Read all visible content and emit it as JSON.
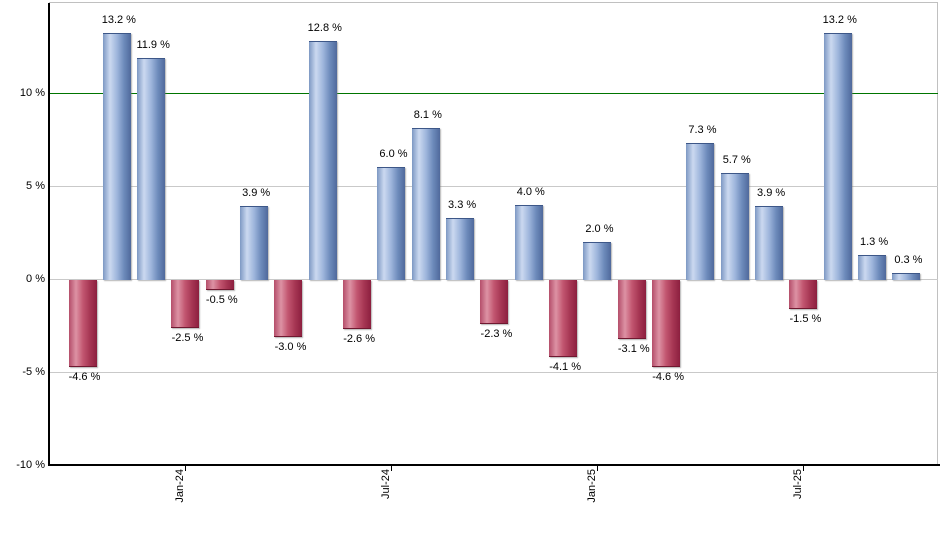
{
  "chart_data": {
    "type": "bar",
    "title": "",
    "xlabel": "",
    "ylabel": "",
    "grid": true,
    "legend": false,
    "ylim": [
      -10,
      14.8
    ],
    "values": [
      -4.6,
      13.2,
      11.9,
      -2.5,
      -0.5,
      3.9,
      -3.0,
      12.8,
      -2.6,
      6.0,
      8.1,
      3.3,
      -2.3,
      4.0,
      -4.1,
      2.0,
      -3.1,
      -4.6,
      7.3,
      5.7,
      3.9,
      -1.5,
      13.2,
      1.3,
      0.3
    ],
    "bar_labels": [
      "-4.6 %",
      "13.2 %",
      "11.9 %",
      "-2.5 %",
      "-0.5 %",
      "3.9 %",
      "-3.0 %",
      "12.8 %",
      "-2.6 %",
      "6.0 %",
      "8.1 %",
      "3.3 %",
      "-2.3 %",
      "4.0 %",
      "-4.1 %",
      "2.0 %",
      "-3.1 %",
      "-4.6 %",
      "7.3 %",
      "5.7 %",
      "3.9 %",
      "-1.5 %",
      "13.2 %",
      "1.3 %",
      "0.3 %"
    ],
    "x_ticks": [
      {
        "label": "Jan-24",
        "bar_index": 3
      },
      {
        "label": "Jul-24",
        "bar_index": 9
      },
      {
        "label": "Jan-25",
        "bar_index": 15
      },
      {
        "label": "Jul-25",
        "bar_index": 21
      }
    ],
    "y_ticks": [
      {
        "label": "10 %",
        "value": 10
      },
      {
        "label": "5 %",
        "value": 5
      },
      {
        "label": "0 %",
        "value": 0
      },
      {
        "label": "-5 %",
        "value": -5
      },
      {
        "label": "-10 %",
        "value": -10
      }
    ],
    "reference_line": {
      "value": 10,
      "color": "#007500"
    },
    "colors": {
      "positive_bar_gradient": [
        "#7d98c3",
        "#cbd9f0",
        "#9fb6dc",
        "#6d8bbb",
        "#50699c"
      ],
      "negative_bar_gradient": [
        "#b44e6a",
        "#dd92a4",
        "#c25670",
        "#a63653",
        "#8c1f3f"
      ],
      "reference_line": "#007500",
      "gridline": "#c9c9c9",
      "axis": "#000000",
      "label_text": "#000000"
    }
  }
}
